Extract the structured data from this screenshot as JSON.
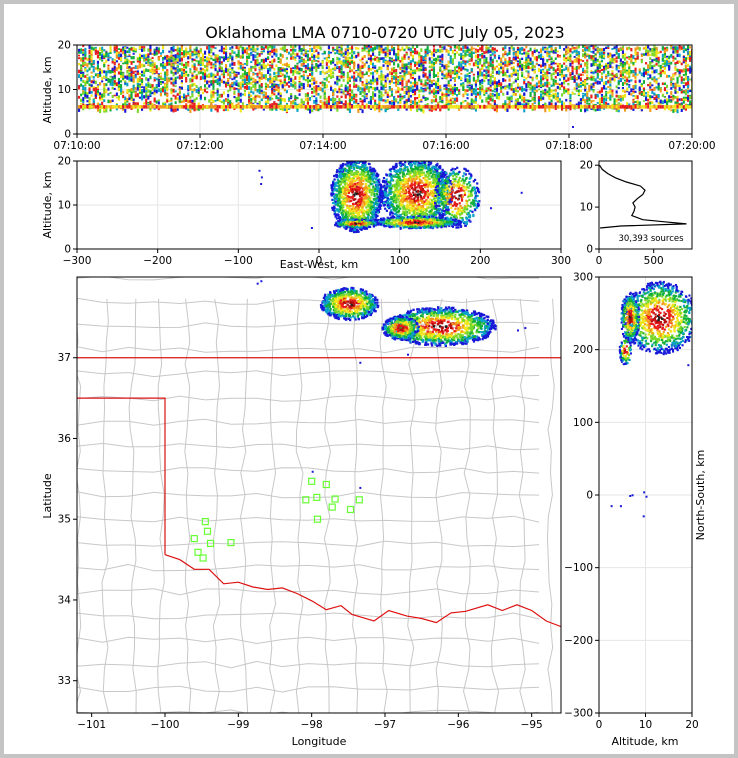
{
  "title": "Oklahoma LMA 0710-0720 UTC July 05, 2023",
  "colors": {
    "density": [
      "#1818d8",
      "#0aa0c8",
      "#12b03a",
      "#7ad82a",
      "#f2e61a",
      "#f39a1a",
      "#ea1c1c",
      "#b40f0f",
      "#202020"
    ],
    "state_border": "#dd1111",
    "county_lines": "#c8c8c8",
    "stations": "#66ff33",
    "profile_line": "#000000",
    "grid": "#e6e6e6"
  },
  "chart_data": [
    {
      "id": "altitude-vs-time",
      "type": "heatmap",
      "ylabel": "Altitude, km",
      "ylim": [
        0,
        20
      ],
      "yticks": [
        "0",
        "10",
        "20"
      ],
      "xticks": [
        "07:10:00",
        "07:12:00",
        "07:14:00",
        "07:16:00",
        "07:18:00",
        "07:20:00"
      ],
      "x_range_minutes": [
        0,
        10
      ],
      "active_altitude_km": [
        5,
        20
      ],
      "grid": true
    },
    {
      "id": "altitude-vs-east-west",
      "type": "heatmap",
      "xlabel": "East-West, km",
      "ylabel": "Altitude, km",
      "xlim": [
        -300,
        300
      ],
      "ylim": [
        0,
        20
      ],
      "xticks": [
        "−300",
        "−200",
        "−100",
        "0",
        "100",
        "200",
        "300"
      ],
      "yticks": [
        "0",
        "10",
        "20"
      ],
      "cores_km": [
        {
          "x": 45,
          "z": 14
        },
        {
          "x": 120,
          "z": 14
        },
        {
          "x": 120,
          "z": 6
        }
      ],
      "grid": true
    },
    {
      "id": "altitude-histogram",
      "type": "line",
      "xlim": [
        0,
        850
      ],
      "ylim": [
        0,
        21
      ],
      "xticks": [
        "0",
        "500"
      ],
      "yticks": [
        "0",
        "10",
        "20"
      ],
      "annotation": "30,393 sources",
      "altitude_km": [
        5,
        5.5,
        6,
        6.5,
        7,
        8,
        9,
        10,
        11,
        12,
        13,
        14,
        15,
        16,
        17,
        18,
        19,
        20
      ],
      "count": [
        10,
        200,
        800,
        600,
        400,
        300,
        320,
        330,
        310,
        350,
        400,
        420,
        380,
        250,
        150,
        80,
        30,
        5
      ]
    },
    {
      "id": "plan-view",
      "type": "heatmap",
      "xlabel": "Longitude",
      "ylabel": "Latitude",
      "xlim": [
        -101.2,
        -94.6
      ],
      "ylim": [
        32.6,
        38.0
      ],
      "xticks": [
        "−101",
        "−100",
        "−99",
        "−98",
        "−97",
        "−96",
        "−95"
      ],
      "yticks": [
        "33",
        "34",
        "35",
        "36",
        "37"
      ],
      "cores_deg": [
        {
          "lon": -97.5,
          "lat": 37.68
        },
        {
          "lon": -96.6,
          "lat": 37.42
        }
      ],
      "stations_deg": [
        {
          "lon": -99.45,
          "lat": 34.97
        },
        {
          "lon": -99.42,
          "lat": 34.85
        },
        {
          "lon": -99.6,
          "lat": 34.76
        },
        {
          "lon": -99.38,
          "lat": 34.7
        },
        {
          "lon": -99.55,
          "lat": 34.59
        },
        {
          "lon": -99.48,
          "lat": 34.52
        },
        {
          "lon": -99.1,
          "lat": 34.71
        },
        {
          "lon": -98.0,
          "lat": 35.47
        },
        {
          "lon": -97.8,
          "lat": 35.43
        },
        {
          "lon": -98.08,
          "lat": 35.24
        },
        {
          "lon": -97.93,
          "lat": 35.27
        },
        {
          "lon": -97.72,
          "lat": 35.15
        },
        {
          "lon": -97.68,
          "lat": 35.25
        },
        {
          "lon": -97.47,
          "lat": 35.12
        },
        {
          "lon": -97.35,
          "lat": 35.24
        },
        {
          "lon": -97.92,
          "lat": 35.0
        }
      ]
    },
    {
      "id": "north-south-vs-altitude",
      "type": "heatmap",
      "xlabel": "Altitude, km",
      "ylabel": "North-South, km",
      "xlim": [
        0,
        20
      ],
      "ylim": [
        -300,
        300
      ],
      "xticks": [
        "0",
        "10",
        "20"
      ],
      "yticks": [
        "−300",
        "−200",
        "−100",
        "0",
        "100",
        "200",
        "300"
      ],
      "cores_km": [
        {
          "z": 14,
          "y": 237
        }
      ]
    }
  ]
}
